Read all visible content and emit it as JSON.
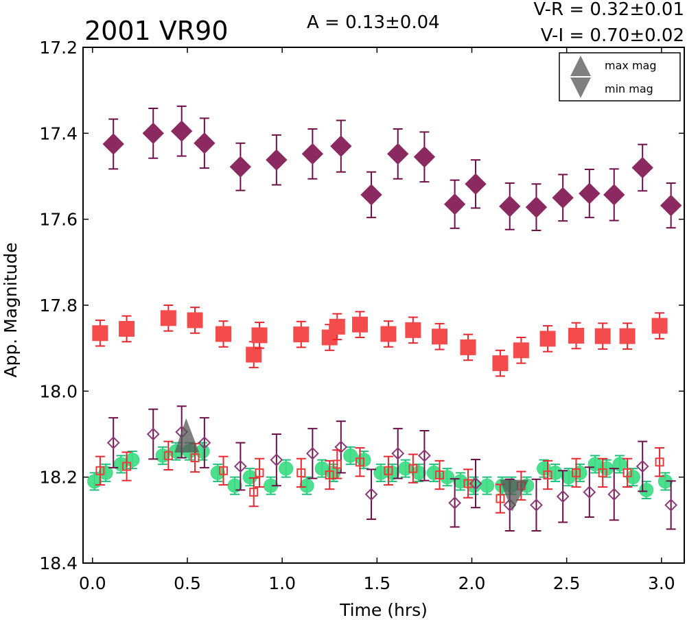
{
  "chart_data": {
    "type": "scatter",
    "title": "2001 VR90",
    "annotations": {
      "amplitude": "A  = 0.13±0.04",
      "v_r": "V-R = 0.32±0.01",
      "v_i": "V-I  = 0.70±0.02"
    },
    "xlabel": "Time (hrs)",
    "ylabel": "App. Magnitude",
    "xlim": [
      -0.05,
      3.12
    ],
    "ylim": [
      18.4,
      17.2
    ],
    "y_inverted": true,
    "grid": false,
    "xticks": [
      0.0,
      0.5,
      1.0,
      1.5,
      2.0,
      2.5,
      3.0
    ],
    "xtick_labels": [
      "0.0",
      "0.5",
      "1.0",
      "1.5",
      "2.0",
      "2.5",
      "3.0"
    ],
    "yticks": [
      17.2,
      17.4,
      17.6,
      17.8,
      18.0,
      18.2,
      18.4
    ],
    "ytick_labels": [
      "17.2",
      "17.4",
      "17.6",
      "17.8",
      "18.0",
      "18.2",
      "18.4"
    ],
    "legend": {
      "position": "top-right",
      "entries": [
        {
          "label": "max mag",
          "marker": "triangle-up",
          "color": "#777777"
        },
        {
          "label": "min mag",
          "marker": "triangle-down",
          "color": "#777777"
        }
      ]
    },
    "colors": {
      "filled_diamond": "#8b2a61",
      "diamond_error": "#6e0e48",
      "filled_square": "#f44c4c",
      "square_error": "#e8262e",
      "circle": "#3ddc84",
      "circle_error": "#1fc07a",
      "open_diamond": "#8b3a7a",
      "open_square": "#ee3a3a",
      "extrema_marker": "#555555"
    },
    "series": [
      {
        "marker": "filled-diamond",
        "x": [
          0.11,
          0.32,
          0.47,
          0.59,
          0.78,
          0.97,
          1.16,
          1.31,
          1.47,
          1.61,
          1.75,
          1.91,
          2.02,
          2.2,
          2.34,
          2.48,
          2.62,
          2.75,
          2.9,
          3.05
        ],
        "y": [
          17.425,
          17.4,
          17.395,
          17.423,
          17.478,
          17.462,
          17.448,
          17.43,
          17.543,
          17.448,
          17.455,
          17.565,
          17.518,
          17.57,
          17.572,
          17.55,
          17.54,
          17.543,
          17.48,
          17.568
        ],
        "yerr": [
          0.058,
          0.058,
          0.058,
          0.058,
          0.055,
          0.058,
          0.058,
          0.06,
          0.053,
          0.058,
          0.058,
          0.056,
          0.056,
          0.054,
          0.054,
          0.054,
          0.056,
          0.06,
          0.054,
          0.052
        ]
      },
      {
        "marker": "filled-square",
        "x": [
          0.04,
          0.18,
          0.4,
          0.54,
          0.69,
          0.85,
          0.88,
          1.1,
          1.25,
          1.29,
          1.41,
          1.56,
          1.69,
          1.83,
          1.98,
          2.15,
          2.26,
          2.4,
          2.55,
          2.69,
          2.82,
          2.99
        ],
        "y": [
          17.865,
          17.855,
          17.83,
          17.835,
          17.867,
          17.915,
          17.87,
          17.868,
          17.875,
          17.85,
          17.845,
          17.867,
          17.858,
          17.873,
          17.898,
          17.935,
          17.905,
          17.878,
          17.871,
          17.872,
          17.872,
          17.848
        ],
        "yerr": [
          0.03,
          0.03,
          0.03,
          0.03,
          0.03,
          0.03,
          0.03,
          0.03,
          0.03,
          0.03,
          0.03,
          0.03,
          0.03,
          0.03,
          0.03,
          0.03,
          0.03,
          0.03,
          0.03,
          0.03,
          0.03,
          0.03
        ]
      },
      {
        "marker": "filled-circle",
        "x": [
          0.01,
          0.07,
          0.15,
          0.21,
          0.37,
          0.44,
          0.51,
          0.58,
          0.66,
          0.75,
          0.83,
          0.94,
          1.02,
          1.13,
          1.21,
          1.27,
          1.36,
          1.43,
          1.52,
          1.58,
          1.65,
          1.72,
          1.8,
          1.87,
          1.94,
          2.01,
          2.08,
          2.16,
          2.21,
          2.29,
          2.38,
          2.44,
          2.51,
          2.57,
          2.65,
          2.71,
          2.78,
          2.85,
          2.92,
          3.02
        ],
        "y": [
          18.21,
          18.19,
          18.17,
          18.16,
          18.15,
          18.14,
          18.14,
          18.14,
          18.19,
          18.22,
          18.2,
          18.22,
          18.18,
          18.22,
          18.18,
          18.19,
          18.15,
          18.16,
          18.19,
          18.19,
          18.18,
          18.19,
          18.19,
          18.2,
          18.21,
          18.22,
          18.22,
          18.22,
          18.22,
          18.22,
          18.18,
          18.19,
          18.2,
          18.19,
          18.17,
          18.18,
          18.17,
          18.2,
          18.23,
          18.21
        ],
        "yerr": [
          0.02,
          0.02,
          0.02,
          0.02,
          0.02,
          0.02,
          0.02,
          0.02,
          0.02,
          0.02,
          0.02,
          0.02,
          0.02,
          0.02,
          0.02,
          0.02,
          0.02,
          0.02,
          0.02,
          0.02,
          0.02,
          0.02,
          0.02,
          0.02,
          0.02,
          0.02,
          0.02,
          0.02,
          0.02,
          0.02,
          0.02,
          0.02,
          0.02,
          0.02,
          0.02,
          0.02,
          0.02,
          0.02,
          0.02,
          0.02
        ]
      },
      {
        "marker": "open-diamond",
        "x": [
          0.11,
          0.32,
          0.47,
          0.59,
          0.78,
          0.97,
          1.16,
          1.31,
          1.47,
          1.61,
          1.75,
          1.91,
          2.02,
          2.2,
          2.34,
          2.48,
          2.62,
          2.75,
          2.9,
          3.05
        ],
        "y": [
          18.12,
          18.1,
          18.095,
          18.12,
          18.175,
          18.16,
          18.145,
          18.13,
          18.24,
          18.145,
          18.15,
          18.26,
          18.215,
          18.265,
          18.265,
          18.245,
          18.235,
          18.24,
          18.175,
          18.265
        ],
        "yerr": [
          0.058,
          0.058,
          0.06,
          0.058,
          0.055,
          0.06,
          0.058,
          0.06,
          0.058,
          0.058,
          0.058,
          0.056,
          0.056,
          0.06,
          0.06,
          0.06,
          0.058,
          0.06,
          0.058,
          0.056
        ]
      },
      {
        "marker": "open-square",
        "x": [
          0.04,
          0.18,
          0.4,
          0.54,
          0.69,
          0.85,
          0.88,
          1.1,
          1.25,
          1.29,
          1.41,
          1.56,
          1.69,
          1.83,
          1.98,
          2.15,
          2.26,
          2.4,
          2.55,
          2.69,
          2.82,
          2.99
        ],
        "y": [
          18.185,
          18.175,
          18.15,
          18.155,
          18.185,
          18.235,
          18.19,
          18.19,
          18.195,
          18.17,
          18.165,
          18.185,
          18.18,
          18.195,
          18.215,
          18.25,
          18.22,
          18.195,
          18.19,
          18.19,
          18.19,
          18.165
        ],
        "yerr": [
          0.033,
          0.033,
          0.033,
          0.033,
          0.033,
          0.033,
          0.033,
          0.033,
          0.033,
          0.033,
          0.033,
          0.033,
          0.033,
          0.033,
          0.033,
          0.033,
          0.033,
          0.033,
          0.033,
          0.033,
          0.033,
          0.033
        ]
      }
    ],
    "extrema": [
      {
        "label": "max mag",
        "marker": "triangle-up",
        "x": 0.49,
        "y": 18.13
      },
      {
        "label": "min mag",
        "marker": "triangle-down",
        "x": 2.22,
        "y": 18.235
      }
    ]
  }
}
